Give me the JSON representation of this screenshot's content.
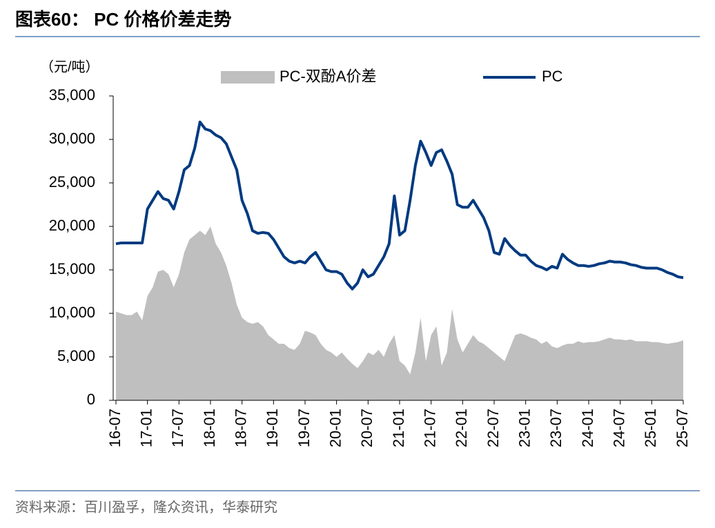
{
  "chart_data": {
    "type": "area_line",
    "title": "图表60： PC 价格价差走势",
    "y_label": "（元/吨）",
    "source": "资料来源：百川盈孚，隆众资讯，华泰研究",
    "categories": [
      "16-07",
      null,
      null,
      null,
      null,
      null,
      "17-01",
      null,
      null,
      null,
      null,
      null,
      "17-07",
      null,
      null,
      null,
      null,
      null,
      "18-01",
      null,
      null,
      null,
      null,
      null,
      "18-07",
      null,
      null,
      null,
      null,
      null,
      "19-01",
      null,
      null,
      null,
      null,
      null,
      "19-07",
      null,
      null,
      null,
      null,
      null,
      "20-01",
      null,
      null,
      null,
      null,
      null,
      "20-07",
      null,
      null,
      null,
      null,
      null,
      "21-01",
      null,
      null,
      null,
      null,
      null,
      "21-07",
      null,
      null,
      null,
      null,
      null,
      "22-01",
      null,
      null,
      null,
      null,
      null,
      "22-07",
      null,
      null,
      null,
      null,
      null,
      "23-01",
      null,
      null,
      null,
      null,
      null,
      "23-07",
      null,
      null,
      null,
      null,
      null,
      "24-01",
      null,
      null,
      null,
      null,
      null,
      "24-07",
      null,
      null,
      null,
      null,
      null,
      "25-01",
      null,
      null,
      null,
      null,
      null,
      "25-07"
    ],
    "series": [
      {
        "name": "PC-双酚A价差",
        "kind": "area",
        "color": "#bfbfbf",
        "values": [
          10200,
          10000,
          9800,
          9800,
          10200,
          9200,
          12000,
          13000,
          14800,
          15000,
          14500,
          13000,
          14500,
          17000,
          18500,
          19000,
          19500,
          19000,
          20000,
          18000,
          17000,
          15500,
          13500,
          11000,
          9500,
          9000,
          8800,
          9000,
          8500,
          7500,
          7000,
          6500,
          6500,
          6000,
          5800,
          6500,
          8000,
          7800,
          7500,
          6500,
          5800,
          5500,
          5000,
          5500,
          4800,
          4200,
          3700,
          4500,
          5500,
          5200,
          5800,
          5000,
          6500,
          7500,
          4500,
          4000,
          3000,
          5500,
          9500,
          4500,
          7500,
          8500,
          4000,
          5500,
          10500,
          7000,
          5500,
          6500,
          7500,
          6800,
          6500,
          6000,
          5500,
          5000,
          4500,
          6000,
          7500,
          7700,
          7500,
          7200,
          7000,
          6500,
          6800,
          6200,
          6000,
          6300,
          6500,
          6500,
          6800,
          6600,
          6700,
          6700,
          6800,
          7000,
          7200,
          7000,
          7000,
          6900,
          7000,
          6800,
          6800,
          6800,
          6700,
          6700,
          6600,
          6500,
          6600,
          6700,
          6900
        ]
      },
      {
        "name": "PC",
        "kind": "line",
        "color": "#003a80",
        "values": [
          18000,
          18100,
          18100,
          18100,
          18100,
          18100,
          22000,
          23000,
          24000,
          23200,
          23000,
          22000,
          24000,
          26500,
          27000,
          29000,
          32000,
          31200,
          31000,
          30500,
          30200,
          29500,
          28000,
          26500,
          23000,
          21500,
          19500,
          19200,
          19300,
          19200,
          18500,
          17500,
          16500,
          16000,
          15800,
          16000,
          15800,
          16500,
          17000,
          16000,
          15000,
          14800,
          14800,
          14500,
          13500,
          12800,
          13500,
          15000,
          14200,
          14500,
          15500,
          16500,
          18000,
          23500,
          19000,
          19500,
          23000,
          27000,
          29800,
          28500,
          27000,
          28500,
          28800,
          27500,
          26000,
          22500,
          22200,
          22200,
          23000,
          22000,
          21000,
          19500,
          17000,
          16800,
          18600,
          17800,
          17200,
          16700,
          16700,
          16000,
          15500,
          15300,
          15000,
          15400,
          15200,
          16800,
          16200,
          15800,
          15500,
          15500,
          15400,
          15500,
          15700,
          15800,
          16000,
          15900,
          15900,
          15800,
          15600,
          15500,
          15300,
          15200,
          15200,
          15200,
          15000,
          14700,
          14500,
          14200,
          14100
        ]
      }
    ],
    "ylim": [
      0,
      35000
    ],
    "yticks": [
      0,
      {
        "value": 5000,
        "label": "5,000"
      },
      {
        "value": 10000,
        "label": "10,000"
      },
      {
        "value": 15000,
        "label": "15,000"
      },
      {
        "value": 20000,
        "label": "20,000"
      },
      {
        "value": 25000,
        "label": "25,000"
      },
      {
        "value": 30000,
        "label": "30,000"
      },
      {
        "value": 35000,
        "label": "35,000"
      }
    ],
    "grid": false
  }
}
